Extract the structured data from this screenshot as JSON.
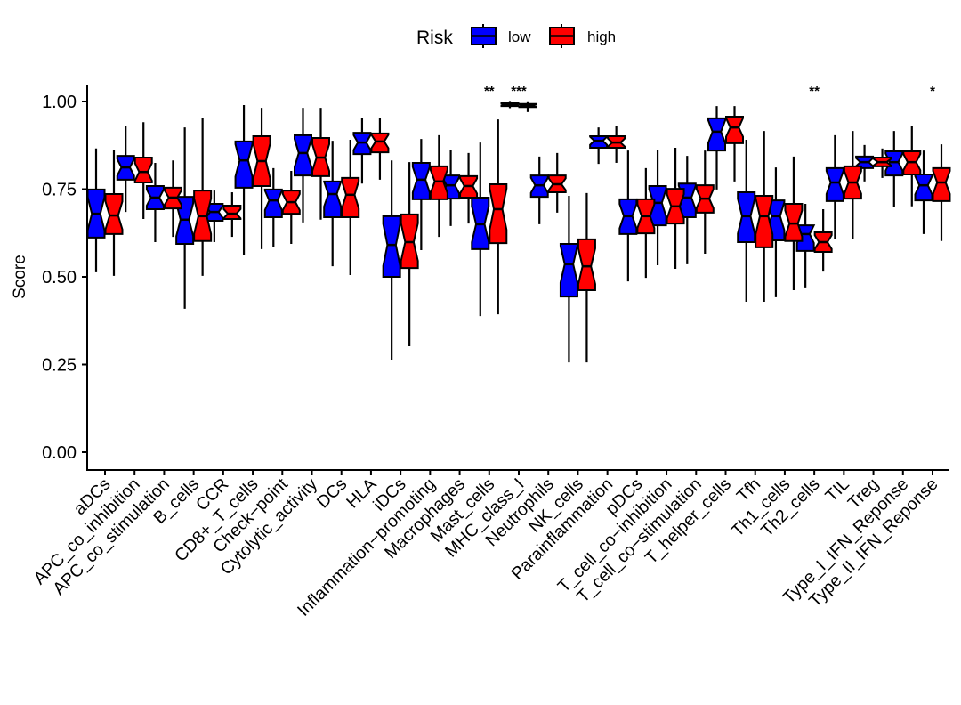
{
  "chart_data": {
    "type": "boxplot",
    "notched": true,
    "title": "",
    "xlabel": "",
    "ylabel": "Score",
    "ylim": [
      -0.04,
      1.05
    ],
    "yticks": [
      0.0,
      0.25,
      0.5,
      0.75,
      1.0
    ],
    "ytick_labels": [
      "0.00",
      "0.25",
      "0.50",
      "0.75",
      "1.00"
    ],
    "grid": false,
    "legend": {
      "title": "Risk",
      "position": "top",
      "entries": [
        {
          "name": "low",
          "color": "#0000FF"
        },
        {
          "name": "high",
          "color": "#FF0000"
        }
      ]
    },
    "categories": [
      "aDCs",
      "APC_co_inhibition",
      "APC_co_stimulation",
      "B_cells",
      "CCR",
      "CD8+_T_cells",
      "Check−point",
      "Cytolytic_activity",
      "DCs",
      "HLA",
      "iDCs",
      "Inflammation−promoting",
      "Macrophages",
      "Mast_cells",
      "MHC_class_I",
      "Neutrophils",
      "NK_cells",
      "Parainflammation",
      "pDCs",
      "T_cell_co−inhibition",
      "T_cell_co−stimulation",
      "T_helper_cells",
      "Tfh",
      "Th1_cells",
      "Th2_cells",
      "TIL",
      "Treg",
      "Type_I_IFN_Reponse",
      "Type_II_IFN_Reponse"
    ],
    "significance": [
      "",
      "",
      "",
      "",
      "",
      "",
      "",
      "",
      "",
      "",
      "",
      "",
      "",
      "**",
      "***",
      "",
      "",
      "",
      "",
      "",
      "",
      "",
      "",
      "",
      "**",
      "",
      "",
      "",
      "*"
    ],
    "series": [
      {
        "name": "low",
        "color": "#0000FF",
        "stats_order": [
          "min",
          "q1",
          "median",
          "q3",
          "max"
        ],
        "values": [
          [
            0.513,
            0.612,
            0.68,
            0.749,
            0.866
          ],
          [
            0.685,
            0.777,
            0.812,
            0.845,
            0.929
          ],
          [
            0.599,
            0.693,
            0.726,
            0.759,
            0.825
          ],
          [
            0.409,
            0.594,
            0.663,
            0.728,
            0.926
          ],
          [
            0.599,
            0.66,
            0.685,
            0.708,
            0.746
          ],
          [
            0.563,
            0.754,
            0.832,
            0.886,
            0.99
          ],
          [
            0.584,
            0.67,
            0.718,
            0.749,
            0.81
          ],
          [
            0.655,
            0.789,
            0.853,
            0.904,
            0.982
          ],
          [
            0.53,
            0.67,
            0.736,
            0.772,
            0.888
          ],
          [
            0.766,
            0.85,
            0.883,
            0.911,
            0.952
          ],
          [
            0.264,
            0.5,
            0.591,
            0.673,
            0.832
          ],
          [
            0.576,
            0.721,
            0.777,
            0.825,
            0.893
          ],
          [
            0.645,
            0.723,
            0.761,
            0.789,
            0.863
          ],
          [
            0.388,
            0.579,
            0.65,
            0.726,
            0.883
          ],
          [
            0.981,
            0.987,
            0.991,
            0.995,
            0.999
          ],
          [
            0.65,
            0.728,
            0.761,
            0.789,
            0.843
          ],
          [
            0.256,
            0.444,
            0.536,
            0.594,
            0.731
          ],
          [
            0.822,
            0.868,
            0.888,
            0.901,
            0.926
          ],
          [
            0.487,
            0.622,
            0.673,
            0.721,
            0.86
          ],
          [
            0.533,
            0.647,
            0.711,
            0.759,
            0.863
          ],
          [
            0.536,
            0.67,
            0.726,
            0.766,
            0.845
          ],
          [
            0.749,
            0.86,
            0.914,
            0.952,
            0.987
          ],
          [
            0.429,
            0.599,
            0.673,
            0.741,
            0.891
          ],
          [
            0.442,
            0.604,
            0.673,
            0.718,
            0.812
          ],
          [
            0.47,
            0.574,
            0.622,
            0.647,
            0.708
          ],
          [
            0.609,
            0.716,
            0.769,
            0.81,
            0.904
          ],
          [
            0.772,
            0.81,
            0.827,
            0.843,
            0.876
          ],
          [
            0.698,
            0.789,
            0.827,
            0.858,
            0.916
          ],
          [
            0.622,
            0.718,
            0.761,
            0.792,
            0.86
          ]
        ]
      },
      {
        "name": "high",
        "color": "#FF0000",
        "stats_order": [
          "min",
          "q1",
          "median",
          "q3",
          "max"
        ],
        "values": [
          [
            0.503,
            0.622,
            0.675,
            0.736,
            0.863
          ],
          [
            0.665,
            0.769,
            0.799,
            0.84,
            0.941
          ],
          [
            0.614,
            0.695,
            0.726,
            0.754,
            0.832
          ],
          [
            0.503,
            0.602,
            0.673,
            0.746,
            0.954
          ],
          [
            0.614,
            0.665,
            0.68,
            0.703,
            0.741
          ],
          [
            0.579,
            0.759,
            0.83,
            0.901,
            0.982
          ],
          [
            0.594,
            0.68,
            0.713,
            0.746,
            0.802
          ],
          [
            0.663,
            0.787,
            0.84,
            0.896,
            0.982
          ],
          [
            0.505,
            0.67,
            0.734,
            0.782,
            0.891
          ],
          [
            0.777,
            0.855,
            0.886,
            0.909,
            0.954
          ],
          [
            0.302,
            0.525,
            0.599,
            0.678,
            0.827
          ],
          [
            0.614,
            0.721,
            0.772,
            0.815,
            0.904
          ],
          [
            0.652,
            0.726,
            0.759,
            0.787,
            0.853
          ],
          [
            0.393,
            0.596,
            0.693,
            0.764,
            0.949
          ],
          [
            0.97,
            0.984,
            0.988,
            0.993,
            0.998
          ],
          [
            0.683,
            0.741,
            0.764,
            0.789,
            0.853
          ],
          [
            0.256,
            0.462,
            0.53,
            0.607,
            0.739
          ],
          [
            0.825,
            0.868,
            0.883,
            0.901,
            0.931
          ],
          [
            0.497,
            0.624,
            0.673,
            0.721,
            0.81
          ],
          [
            0.523,
            0.652,
            0.701,
            0.751,
            0.868
          ],
          [
            0.566,
            0.683,
            0.723,
            0.761,
            0.86
          ],
          [
            0.772,
            0.881,
            0.926,
            0.957,
            0.987
          ],
          [
            0.429,
            0.584,
            0.673,
            0.731,
            0.916
          ],
          [
            0.462,
            0.602,
            0.652,
            0.708,
            0.843
          ],
          [
            0.515,
            0.571,
            0.599,
            0.627,
            0.693
          ],
          [
            0.607,
            0.723,
            0.769,
            0.815,
            0.916
          ],
          [
            0.782,
            0.815,
            0.827,
            0.84,
            0.866
          ],
          [
            0.701,
            0.792,
            0.827,
            0.858,
            0.931
          ],
          [
            0.602,
            0.716,
            0.769,
            0.81,
            0.878
          ]
        ]
      }
    ]
  }
}
